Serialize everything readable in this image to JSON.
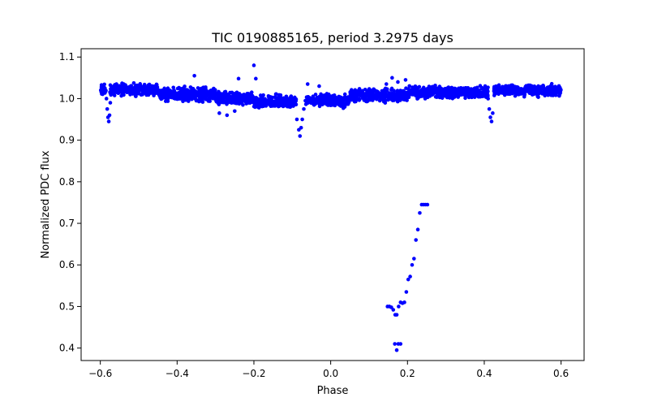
{
  "chart_data": {
    "type": "scatter",
    "title": "TIC 0190885165, period 3.2975 days",
    "xlabel": "Phase",
    "ylabel": "Normalized PDC flux",
    "xlim": [
      -0.65,
      0.66
    ],
    "ylim": [
      0.37,
      1.12
    ],
    "xticks": [
      -0.6,
      -0.4,
      -0.2,
      0.0,
      0.2,
      0.4,
      0.6
    ],
    "xtick_labels": [
      "−0.6",
      "−0.4",
      "−0.2",
      "0.0",
      "0.2",
      "0.4",
      "0.6"
    ],
    "yticks": [
      0.4,
      0.5,
      0.6,
      0.7,
      0.8,
      0.9,
      1.0,
      1.1
    ],
    "ytick_labels": [
      "0.4",
      "0.5",
      "0.6",
      "0.7",
      "0.8",
      "0.9",
      "1.0",
      "1.1"
    ],
    "marker_color": "#0000ff",
    "baseline_segments": [
      {
        "x_start": -0.6,
        "x_end": -0.585,
        "center": 1.02,
        "spread": 0.012
      },
      {
        "x_start": -0.575,
        "x_end": -0.45,
        "center": 1.022,
        "spread": 0.012
      },
      {
        "x_start": -0.45,
        "x_end": -0.3,
        "center": 1.01,
        "spread": 0.014
      },
      {
        "x_start": -0.3,
        "x_end": -0.2,
        "center": 1.0,
        "spread": 0.014
      },
      {
        "x_start": -0.2,
        "x_end": -0.09,
        "center": 0.993,
        "spread": 0.013
      },
      {
        "x_start": -0.065,
        "x_end": 0.05,
        "center": 0.995,
        "spread": 0.013
      },
      {
        "x_start": 0.05,
        "x_end": 0.2,
        "center": 1.008,
        "spread": 0.013
      },
      {
        "x_start": 0.2,
        "x_end": 0.41,
        "center": 1.015,
        "spread": 0.012
      },
      {
        "x_start": 0.425,
        "x_end": 0.6,
        "center": 1.02,
        "spread": 0.012
      }
    ],
    "points": {
      "x": [
        -0.584,
        -0.582,
        -0.58,
        -0.578,
        -0.576,
        -0.574,
        -0.095,
        -0.088,
        -0.083,
        -0.08,
        -0.077,
        -0.074,
        -0.07,
        -0.066,
        0.41,
        0.413,
        0.416,
        0.419,
        0.422,
        -0.355,
        -0.24,
        -0.2,
        -0.195,
        -0.29,
        -0.27,
        -0.25,
        0.16,
        0.175,
        0.195,
        0.145,
        -0.03,
        -0.06,
        0.148,
        0.153,
        0.158,
        0.163,
        0.168,
        0.172,
        0.177,
        0.182,
        0.187,
        0.192,
        0.197,
        0.202,
        0.207,
        0.212,
        0.217,
        0.222,
        0.227,
        0.232,
        0.237,
        0.242,
        0.247,
        0.252,
        0.167,
        0.172,
        0.176,
        0.182
      ],
      "y": [
        1.0,
        0.975,
        0.955,
        0.945,
        0.96,
        0.99,
        0.985,
        0.95,
        0.925,
        0.91,
        0.93,
        0.95,
        0.975,
        0.995,
        1.0,
        0.975,
        0.955,
        0.945,
        0.965,
        1.055,
        1.048,
        1.08,
        1.048,
        0.965,
        0.96,
        0.97,
        1.05,
        1.04,
        1.045,
        1.035,
        1.03,
        1.035,
        0.5,
        0.5,
        0.498,
        0.492,
        0.48,
        0.48,
        0.5,
        0.51,
        0.508,
        0.51,
        0.535,
        0.565,
        0.572,
        0.6,
        0.615,
        0.66,
        0.685,
        0.725,
        0.745,
        0.745,
        0.745,
        0.745,
        0.41,
        0.395,
        0.41,
        0.41
      ]
    }
  }
}
